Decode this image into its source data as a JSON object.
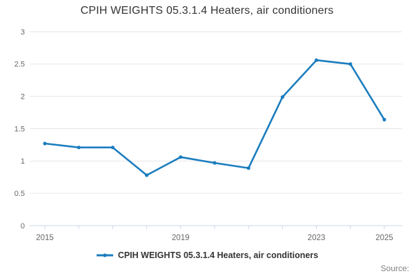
{
  "title": "CPIH WEIGHTS 05.3.1.4 Heaters, air conditioners",
  "legend": {
    "label": "CPIH WEIGHTS 05.3.1.4 Heaters, air conditioners",
    "marker": "line-with-dot-icon"
  },
  "source_label": "Source:",
  "colors": {
    "line": "#1b7dbf",
    "grid": "#e6e6e6",
    "axis": "#ccd6eb",
    "tick_label": "#666666",
    "title_text": "#333333",
    "legend_text": "#333333",
    "source_text": "#808080"
  },
  "chart_data": {
    "type": "line",
    "title": "CPIH WEIGHTS 05.3.1.4 Heaters, air conditioners",
    "x": [
      2015,
      2016,
      2017,
      2018,
      2019,
      2020,
      2021,
      2022,
      2023,
      2024,
      2025
    ],
    "series": [
      {
        "name": "CPIH WEIGHTS 05.3.1.4 Heaters, air conditioners",
        "values": [
          1.27,
          1.21,
          1.21,
          0.78,
          1.06,
          0.97,
          0.89,
          1.99,
          2.56,
          2.5,
          1.64
        ]
      }
    ],
    "xlabel": "",
    "ylabel": "",
    "ylim": [
      0,
      3
    ],
    "yticks": [
      0,
      0.5,
      1,
      1.5,
      2,
      2.5,
      3
    ],
    "xtick_labels_shown": [
      "2015",
      "2019",
      "2023",
      "2025"
    ],
    "grid": true,
    "legend_position": "bottom",
    "marker_style": "dot"
  }
}
